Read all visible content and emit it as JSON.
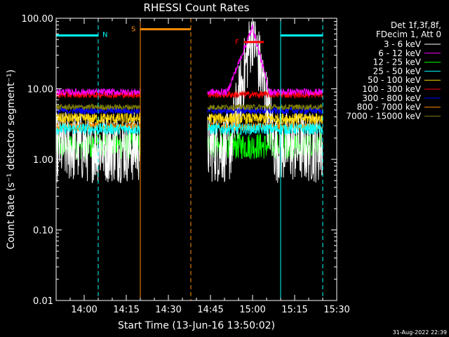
{
  "chart_data": {
    "type": "line",
    "title": "RHESSI Count Rates",
    "xlabel": "Start Time (13-Jun-16 13:50:02)",
    "ylabel": "Count Rate (s⁻¹ detector segment⁻¹)",
    "footer": "31-Aug-2022 22:39",
    "y_scale": "log",
    "ylim": [
      0.01,
      100
    ],
    "xlim": [
      "13:50",
      "15:30"
    ],
    "x_ticks": [
      "14:00",
      "14:15",
      "14:30",
      "14:45",
      "15:00",
      "15:15",
      "15:30"
    ],
    "y_ticks": [
      "0.01",
      "0.10",
      "1.00",
      "10.00",
      "100.00"
    ],
    "legend": {
      "placement": "top-right",
      "header": [
        "Det 1f,3f,8f,",
        "FDecim 1, Att 0"
      ]
    },
    "series": [
      {
        "name": "3 - 6 keV",
        "color": "#ffffff",
        "level": 1.5,
        "spread": 0.32,
        "flare_peak": 70,
        "flare_start": "14:52",
        "flare_peak_time": "15:00",
        "flare_end": "15:08"
      },
      {
        "name": "6 - 12 keV",
        "color": "#ff00ff",
        "level": 9.0,
        "spread": 0.05,
        "flare_peak": 75,
        "flare_start": "14:51",
        "flare_peak_time": "15:00",
        "flare_end": "15:06"
      },
      {
        "name": "12 - 25 keV",
        "color": "#00ff00",
        "level": 1.55,
        "spread": 0.12
      },
      {
        "name": "25 - 50 keV",
        "color": "#00ffff",
        "level": 2.7,
        "spread": 0.08
      },
      {
        "name": "50 - 100 keV",
        "color": "#ffd700",
        "level": 3.8,
        "spread": 0.08
      },
      {
        "name": "100 - 300 keV",
        "color": "#ff0000",
        "level": 8.3,
        "spread": 0.05
      },
      {
        "name": "300 - 800 keV",
        "color": "#0000ff",
        "level": 4.9,
        "spread": 0.05
      },
      {
        "name": "800 - 7000 keV",
        "color": "#ff8c00",
        "level": 2.9,
        "spread": 0.06
      },
      {
        "name": "7000 - 15000 keV",
        "color": "#808000",
        "level": 5.5,
        "spread": 0.04
      }
    ],
    "data_gaps": [
      [
        "14:20",
        "14:44"
      ]
    ],
    "markers": {
      "night": {
        "label": "N",
        "color": "#00ffff",
        "times": [
          "13:50",
          "14:05",
          "15:10",
          "15:25"
        ],
        "bars": [
          [
            "13:50",
            "14:05",
            57
          ],
          [
            "15:10",
            "15:25",
            57
          ]
        ]
      },
      "saa": {
        "label": "S",
        "color": "#ff8c00",
        "times": [
          "14:20",
          "14:38"
        ],
        "bars": [
          [
            "14:20",
            "14:38",
            70
          ]
        ]
      },
      "flare": {
        "label": "F",
        "color": "#ff0000",
        "bars": [
          [
            "14:57",
            "15:04",
            46
          ]
        ]
      }
    }
  }
}
